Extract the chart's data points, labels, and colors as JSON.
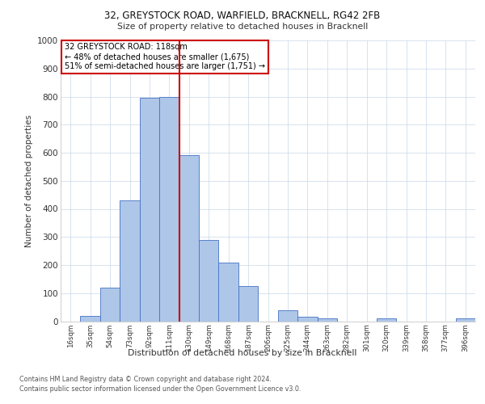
{
  "title1": "32, GREYSTOCK ROAD, WARFIELD, BRACKNELL, RG42 2FB",
  "title2": "Size of property relative to detached houses in Bracknell",
  "xlabel": "Distribution of detached houses by size in Bracknell",
  "ylabel": "Number of detached properties",
  "categories": [
    "16sqm",
    "35sqm",
    "54sqm",
    "73sqm",
    "92sqm",
    "111sqm",
    "130sqm",
    "149sqm",
    "168sqm",
    "187sqm",
    "206sqm",
    "225sqm",
    "244sqm",
    "263sqm",
    "282sqm",
    "301sqm",
    "320sqm",
    "339sqm",
    "358sqm",
    "377sqm",
    "396sqm"
  ],
  "values": [
    0,
    20,
    120,
    430,
    795,
    800,
    590,
    290,
    210,
    125,
    0,
    40,
    15,
    10,
    0,
    0,
    10,
    0,
    0,
    0,
    10
  ],
  "bar_color": "#aec6e8",
  "bar_edge_color": "#4472c4",
  "vline_x": 5.5,
  "vline_color": "#cc0000",
  "annotation_line1": "32 GREYSTOCK ROAD: 118sqm",
  "annotation_line2": "← 48% of detached houses are smaller (1,675)",
  "annotation_line3": "51% of semi-detached houses are larger (1,751) →",
  "annotation_box_color": "#cc0000",
  "annotation_text_color": "#000000",
  "footer_line1": "Contains HM Land Registry data © Crown copyright and database right 2024.",
  "footer_line2": "Contains public sector information licensed under the Open Government Licence v3.0.",
  "ylim": [
    0,
    1000
  ],
  "yticks": [
    0,
    100,
    200,
    300,
    400,
    500,
    600,
    700,
    800,
    900,
    1000
  ],
  "background_color": "#ffffff",
  "grid_color": "#c8d8e8"
}
